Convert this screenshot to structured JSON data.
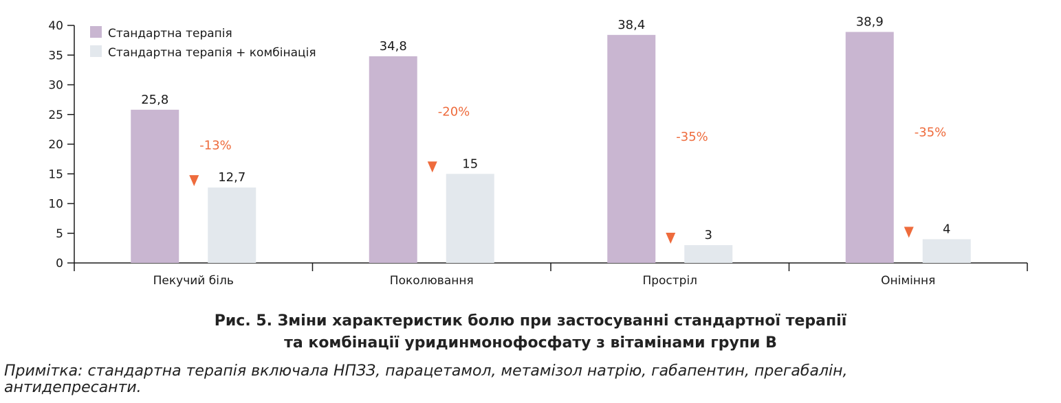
{
  "chart_data": {
    "type": "bar",
    "categories": [
      "Пекучий біль",
      "Поколювання",
      "Простріл",
      "Оніміння"
    ],
    "series": [
      {
        "name": "Стандартна терапія",
        "color": "#c9b6d1",
        "values": [
          25.8,
          34.8,
          38.4,
          38.9
        ],
        "labels": [
          "25,8",
          "34,8",
          "38,4",
          "38,9"
        ]
      },
      {
        "name": "Стандартна терапія + комбінація",
        "color": "#e3e8ed",
        "values": [
          12.7,
          15,
          3,
          4
        ],
        "labels": [
          "12,7",
          "15",
          "3",
          "4"
        ]
      }
    ],
    "annotations": [
      "-13%",
      "-20%",
      "-35%",
      "-35%"
    ],
    "annotation_color": "#ee6b3c",
    "ylim": [
      0,
      40
    ],
    "yticks": [
      "0",
      "5",
      "10",
      "15",
      "20",
      "25",
      "30",
      "35",
      "40"
    ],
    "xlabel": "",
    "ylabel": "",
    "legend": "top-left"
  },
  "caption": {
    "line1": "Рис. 5. Зміни характеристик болю при застосуванні стандартної терапії",
    "line2": "та комбінації уридинмонофосфату з вітамінами групи В"
  },
  "note": {
    "line1": "Примітка: стандартна терапія включала НПЗЗ, парацетамол, метамізол натрію, габапентин, прегабалін,",
    "line2": "антидепресанти."
  }
}
